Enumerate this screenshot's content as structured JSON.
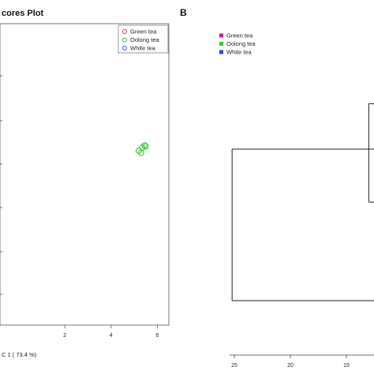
{
  "chart_data": [
    {
      "type": "scatter",
      "panel_label": "",
      "title": "cores Plot",
      "xlabel": "C 1 ( 73.4 %)",
      "ylabel": "",
      "x_ticks": [
        "2",
        "4",
        "6"
      ],
      "xlim": [
        -0.8,
        6.5
      ],
      "ylim": [
        -7,
        7
      ],
      "grid": false,
      "legend_position": "top-right",
      "legend": [
        {
          "name": "Green tea",
          "color": "#cc3377"
        },
        {
          "name": "Oolong tea",
          "color": "#33cc33"
        },
        {
          "name": "White tea",
          "color": "#3355cc"
        }
      ],
      "series": [
        {
          "name": "Green tea",
          "color": "#cc3377",
          "points": []
        },
        {
          "name": "Oolong tea",
          "color": "#33cc33",
          "points": [
            [
              5.2,
              1.1
            ],
            [
              5.35,
              1.25
            ],
            [
              5.45,
              1.35
            ],
            [
              5.3,
              1.0
            ],
            [
              5.5,
              1.3
            ]
          ]
        },
        {
          "name": "White tea",
          "color": "#3355cc",
          "points": []
        }
      ]
    },
    {
      "type": "dendrogram",
      "panel_label": "B",
      "title": "",
      "xlabel": "",
      "x_ticks": [
        "25",
        "20",
        "15"
      ],
      "xlim": [
        0,
        26
      ],
      "reversed_x": true,
      "legend_position": "top-left",
      "legend": [
        {
          "name": "Green tea",
          "color": "#cc2277"
        },
        {
          "name": "Oolong tea",
          "color": "#33cc33"
        },
        {
          "name": "White tea",
          "color": "#3344cc"
        }
      ],
      "merges": [
        {
          "height": 25.2,
          "y_top": 0.0,
          "y_bottom": 1.0,
          "note": "root"
        },
        {
          "height": 13.0,
          "y_top": -0.3,
          "y_bottom": 0.35
        }
      ]
    }
  ]
}
